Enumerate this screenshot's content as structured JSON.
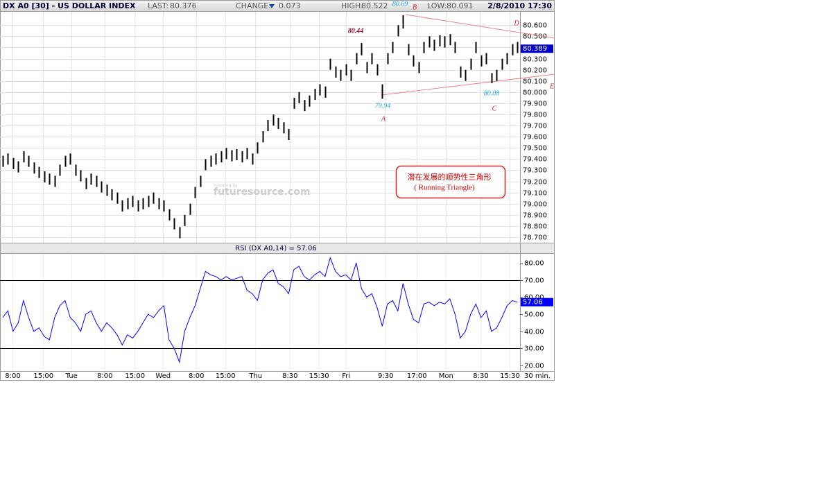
{
  "header": {
    "symbol": "DX A0 [30] - US DOLLAR INDEX",
    "last_label": "LAST:",
    "last": "80.376",
    "change_label": "CHANGE:",
    "change": "0.073",
    "high_label": "HIGH:",
    "high": "80.522",
    "low_label": "LOW:",
    "low": "80.091",
    "datetime": "2/8/2010 17:30"
  },
  "chart_data": [
    {
      "type": "ohlc",
      "color": "#000000",
      "grid": true,
      "xlim": [
        0,
        100
      ],
      "ylim": [
        78.65,
        80.72
      ],
      "yticks": [
        {
          "value": 78.7,
          "label": "78.700"
        },
        {
          "value": 78.8,
          "label": "78.800"
        },
        {
          "value": 78.9,
          "label": "78.900"
        },
        {
          "value": 79.0,
          "label": "79.000"
        },
        {
          "value": 79.1,
          "label": "79.100"
        },
        {
          "value": 79.2,
          "label": "79.200"
        },
        {
          "value": 79.3,
          "label": "79.300"
        },
        {
          "value": 79.4,
          "label": "79.400"
        },
        {
          "value": 79.5,
          "label": "79.500"
        },
        {
          "value": 79.6,
          "label": "79.600"
        },
        {
          "value": 79.7,
          "label": "79.700"
        },
        {
          "value": 79.8,
          "label": "79.800"
        },
        {
          "value": 79.9,
          "label": "79.900"
        },
        {
          "value": 80.0,
          "label": "80.000"
        },
        {
          "value": 80.1,
          "label": "80.100"
        },
        {
          "value": 80.2,
          "label": "80.200"
        },
        {
          "value": 80.3,
          "label": "80.300"
        },
        {
          "value": 80.4,
          "label": "80.400"
        },
        {
          "value": 80.5,
          "label": "80.500"
        },
        {
          "value": 80.6,
          "label": "80.600"
        }
      ],
      "high": [
        79.43,
        79.45,
        79.41,
        79.38,
        79.47,
        79.43,
        79.37,
        79.33,
        79.29,
        79.27,
        79.25,
        79.35,
        79.43,
        79.45,
        79.35,
        79.3,
        79.23,
        79.27,
        79.25,
        79.2,
        79.17,
        79.13,
        79.1,
        79.03,
        79.05,
        79.07,
        79.03,
        79.05,
        79.07,
        79.1,
        79.05,
        79.03,
        78.95,
        78.87,
        78.79,
        78.9,
        79.0,
        79.15,
        79.25,
        79.4,
        79.43,
        79.45,
        79.47,
        79.5,
        79.48,
        79.49,
        79.47,
        79.5,
        79.45,
        79.55,
        79.65,
        79.75,
        79.8,
        79.77,
        79.73,
        79.67,
        79.95,
        80.0,
        79.93,
        79.97,
        80.03,
        80.07,
        80.05,
        80.3,
        80.23,
        80.2,
        80.25,
        80.2,
        80.35,
        80.44,
        80.27,
        80.35,
        80.25,
        80.07,
        80.35,
        80.45,
        80.6,
        80.69,
        80.43,
        80.33,
        80.27,
        80.45,
        80.5,
        80.47,
        80.51,
        80.5,
        80.52,
        80.45,
        80.23,
        80.2,
        80.3,
        80.45,
        80.33,
        80.35,
        80.17,
        80.2,
        80.3,
        80.35,
        80.43,
        80.45
      ],
      "low": [
        79.33,
        79.35,
        79.31,
        79.28,
        79.37,
        79.33,
        79.27,
        79.23,
        79.19,
        79.17,
        79.15,
        79.25,
        79.33,
        79.35,
        79.25,
        79.2,
        79.13,
        79.17,
        79.15,
        79.1,
        79.07,
        79.03,
        79.0,
        78.93,
        78.95,
        78.97,
        78.93,
        78.95,
        78.97,
        79.0,
        78.95,
        78.93,
        78.85,
        78.77,
        78.69,
        78.8,
        78.9,
        79.05,
        79.15,
        79.3,
        79.33,
        79.35,
        79.37,
        79.4,
        79.38,
        79.39,
        79.37,
        79.4,
        79.35,
        79.45,
        79.55,
        79.65,
        79.7,
        79.67,
        79.63,
        79.57,
        79.85,
        79.9,
        79.83,
        79.87,
        79.93,
        79.97,
        79.95,
        80.2,
        80.13,
        80.1,
        80.15,
        80.1,
        80.25,
        80.33,
        80.17,
        80.25,
        80.15,
        79.94,
        80.25,
        80.35,
        80.5,
        80.57,
        80.33,
        80.23,
        80.17,
        80.35,
        80.4,
        80.37,
        80.41,
        80.4,
        80.42,
        80.35,
        80.13,
        80.1,
        80.2,
        80.35,
        80.23,
        80.25,
        80.08,
        80.1,
        80.2,
        80.25,
        80.33,
        80.35
      ],
      "last_price": 80.389,
      "annotations": [
        "80.69",
        "B",
        "80.44",
        "D",
        "E",
        "79.94",
        "A",
        "80.08",
        "C"
      ],
      "note": [
        "潜在发展的顺势性三角形",
        "( Running Triangle)"
      ],
      "watermark": "futuresource.com",
      "watermark_small": "Powered by"
    },
    {
      "type": "line",
      "title": "RSI (DX A0,14) = 57.06",
      "color": "#0000ff",
      "xlim": [
        0,
        100
      ],
      "ylim": [
        16.8,
        85.3
      ],
      "xticks": [
        {
          "value": 2.4,
          "label": "8:00"
        },
        {
          "value": 8.3,
          "label": "15:00"
        },
        {
          "value": 13.7,
          "label": "Tue"
        },
        {
          "value": 20.1,
          "label": "8:00"
        },
        {
          "value": 25.9,
          "label": "15:00"
        },
        {
          "value": 31.3,
          "label": "Wed"
        },
        {
          "value": 37.7,
          "label": "8:00"
        },
        {
          "value": 43.3,
          "label": "15:00"
        },
        {
          "value": 49.1,
          "label": "Thu"
        },
        {
          "value": 55.7,
          "label": "8:30"
        },
        {
          "value": 61.3,
          "label": "15:30"
        },
        {
          "value": 66.5,
          "label": "Fri"
        },
        {
          "value": 74.1,
          "label": "9:30"
        },
        {
          "value": 80.1,
          "label": "17:00"
        },
        {
          "value": 85.7,
          "label": "Mon"
        },
        {
          "value": 92.4,
          "label": "8:30"
        },
        {
          "value": 98,
          "label": "15:30"
        }
      ],
      "x_unit": "30 min.",
      "yticks": [
        {
          "value": 20,
          "label": "20.00"
        },
        {
          "value": 30,
          "label": "30.00"
        },
        {
          "value": 40,
          "label": "40.00"
        },
        {
          "value": 50,
          "label": "50.00"
        },
        {
          "value": 60,
          "label": "60.00"
        },
        {
          "value": 70,
          "label": "70.00"
        },
        {
          "value": 80,
          "label": "80.00"
        }
      ],
      "bands": [
        30,
        70
      ],
      "values": [
        48,
        52,
        40,
        45,
        58,
        48,
        40,
        42,
        37,
        35,
        48,
        55,
        58,
        48,
        45,
        40,
        50,
        52,
        45,
        40,
        45,
        42,
        38,
        32,
        38,
        36,
        40,
        45,
        50,
        48,
        52,
        55,
        35,
        30,
        22,
        40,
        48,
        55,
        65,
        75,
        73,
        72,
        70,
        72,
        70,
        71,
        72,
        64,
        62,
        58,
        70,
        74,
        76,
        68,
        66,
        62,
        76,
        78,
        72,
        70,
        73,
        75,
        72,
        83,
        75,
        72,
        73,
        70,
        80,
        65,
        60,
        62,
        54,
        43,
        56,
        58,
        52,
        68,
        56,
        47,
        45,
        56,
        57,
        55,
        57,
        56,
        59,
        50,
        36,
        40,
        50,
        56,
        48,
        52,
        40,
        42,
        48,
        55,
        58,
        57.06
      ],
      "last_value": 57.06
    }
  ]
}
